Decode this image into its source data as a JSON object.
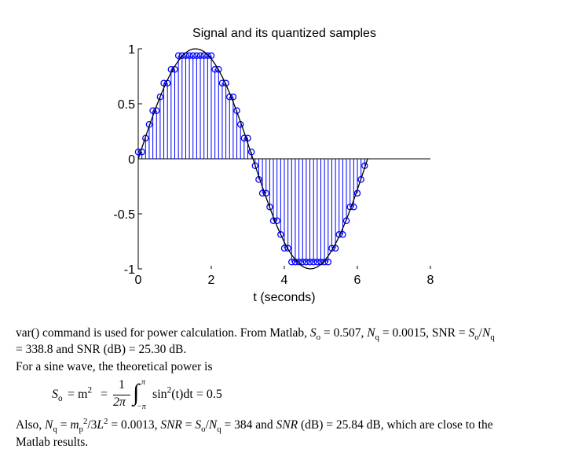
{
  "chart_data": {
    "type": "stem",
    "title": "Signal and its quantized samples",
    "xlabel": "t (seconds)",
    "ylabel": "",
    "xlim": [
      0,
      8
    ],
    "ylim": [
      -1,
      1
    ],
    "x_ticks": [
      "0",
      "2",
      "4",
      "6",
      "8"
    ],
    "y_ticks": [
      "1",
      "0.5",
      "0",
      "-0.5",
      "-1"
    ],
    "grid": false,
    "series": [
      {
        "kind": "continuous signal sin(t)",
        "x": [
          0,
          0.1,
          0.2,
          0.3,
          0.4,
          0.5,
          0.6,
          0.7,
          0.8,
          0.9,
          1.0,
          1.1,
          1.2,
          1.3,
          1.4,
          1.5,
          1.6,
          1.7,
          1.8,
          1.9,
          2.0,
          2.1,
          2.2,
          2.3,
          2.4,
          2.5,
          2.6,
          2.7,
          2.8,
          2.9,
          3.0,
          3.1,
          3.2,
          3.3,
          3.4,
          3.5,
          3.6,
          3.7,
          3.8,
          3.9,
          4.0,
          4.1,
          4.2,
          4.3,
          4.4,
          4.5,
          4.6,
          4.7,
          4.8,
          4.9,
          5.0,
          5.1,
          5.2,
          5.3,
          5.4,
          5.5,
          5.6,
          5.7,
          5.8,
          5.9,
          6.0,
          6.1,
          6.2,
          6.28
        ],
        "y": [
          0,
          0.0998,
          0.1987,
          0.2955,
          0.3894,
          0.4794,
          0.5646,
          0.6442,
          0.7174,
          0.7833,
          0.8415,
          0.8912,
          0.932,
          0.9636,
          0.9854,
          0.9975,
          0.9996,
          0.9917,
          0.9738,
          0.9463,
          0.9093,
          0.8632,
          0.8085,
          0.7457,
          0.6755,
          0.5985,
          0.5155,
          0.4274,
          0.335,
          0.2392,
          0.1411,
          0.0416,
          -0.0584,
          -0.1577,
          -0.2555,
          -0.3508,
          -0.4425,
          -0.5298,
          -0.6119,
          -0.6878,
          -0.7568,
          -0.8183,
          -0.8716,
          -0.9162,
          -0.9516,
          -0.9775,
          -0.9937,
          -0.9999,
          -0.9962,
          -0.9825,
          -0.9589,
          -0.9258,
          -0.8835,
          -0.8323,
          -0.7728,
          -0.7055,
          -0.6313,
          -0.5507,
          -0.4646,
          -0.3739,
          -0.2794,
          -0.1822,
          -0.0831,
          0
        ]
      },
      {
        "kind": "quantized samples (stem)",
        "x": [
          0.0,
          0.1,
          0.2,
          0.3,
          0.4,
          0.5,
          0.6,
          0.7,
          0.8,
          0.9,
          1.0,
          1.1,
          1.2,
          1.3,
          1.4,
          1.5,
          1.6,
          1.7,
          1.8,
          1.9,
          2.0,
          2.1,
          2.2,
          2.3,
          2.4,
          2.5,
          2.6,
          2.7,
          2.8,
          2.9,
          3.0,
          3.1,
          3.2,
          3.3,
          3.4,
          3.5,
          3.6,
          3.7,
          3.8,
          3.9,
          4.0,
          4.1,
          4.2,
          4.3,
          4.4,
          4.5,
          4.6,
          4.7,
          4.8,
          4.9,
          5.0,
          5.1,
          5.2,
          5.3,
          5.4,
          5.5,
          5.6,
          5.7,
          5.8,
          5.9,
          6.0,
          6.1,
          6.2
        ],
        "y": [
          0.0625,
          0.0625,
          0.1875,
          0.3125,
          0.4375,
          0.4375,
          0.5625,
          0.6875,
          0.6875,
          0.8125,
          0.8125,
          0.9375,
          0.9375,
          0.9375,
          0.9375,
          0.9375,
          0.9375,
          0.9375,
          0.9375,
          0.9375,
          0.9375,
          0.8125,
          0.8125,
          0.6875,
          0.6875,
          0.5625,
          0.5625,
          0.4375,
          0.3125,
          0.1875,
          0.1875,
          0.0625,
          -0.0625,
          -0.1875,
          -0.3125,
          -0.3125,
          -0.4375,
          -0.5625,
          -0.5625,
          -0.6875,
          -0.8125,
          -0.8125,
          -0.9375,
          -0.9375,
          -0.9375,
          -0.9375,
          -0.9375,
          -0.9375,
          -0.9375,
          -0.9375,
          -0.9375,
          -0.9375,
          -0.9375,
          -0.8125,
          -0.8125,
          -0.6875,
          -0.6875,
          -0.5625,
          -0.4375,
          -0.4375,
          -0.3125,
          -0.1875,
          -0.0625
        ]
      }
    ]
  },
  "text": {
    "p1_line1_a": "var() command is used for power calculation. From Matlab, ",
    "p1_line1_s": "S",
    "p1_line1_s_sub": "o",
    "p1_line1_b": " = 0.507, ",
    "p1_line1_n": "N",
    "p1_line1_n_sub": "q",
    "p1_line1_c": " = 0.0015, SNR = ",
    "p1_line1_d": "/",
    "p1_line2": "= 338.8 and SNR (dB) = 25.30 dB.",
    "p2": "For a sine wave, the theoretical power is",
    "eq_lhs": "S",
    "eq_lhs_sub": "o",
    "eq_mid": "= m",
    "eq_mid_sup": "2",
    "eq_eq2": "=",
    "eq_num": "1",
    "eq_den": "2π",
    "eq_integral": "∫",
    "eq_upper": "π",
    "eq_lower": "−π",
    "eq_integrand": "sin",
    "eq_integrand_sup": "2",
    "eq_integrand_rest": "(t)dt = 0.5",
    "p3_a": "Also, ",
    "p3_b": " = ",
    "p3_mp": "m",
    "p3_mp_sub": "p",
    "p3_mp_sup": "2",
    "p3_c": "/3",
    "p3_L": "L",
    "p3_L_sup": "2",
    "p3_d": " = 0.0013, ",
    "p3_snr": "SNR",
    "p3_e": " = ",
    "p3_f": "/",
    "p3_g": " = 384 and ",
    "p3_h": " (dB) = 25.84 dB, which are close to the",
    "p4": "Matlab results."
  },
  "colors": {
    "stem": "#0000ff",
    "signal": "#000000",
    "axes": "#000000"
  }
}
